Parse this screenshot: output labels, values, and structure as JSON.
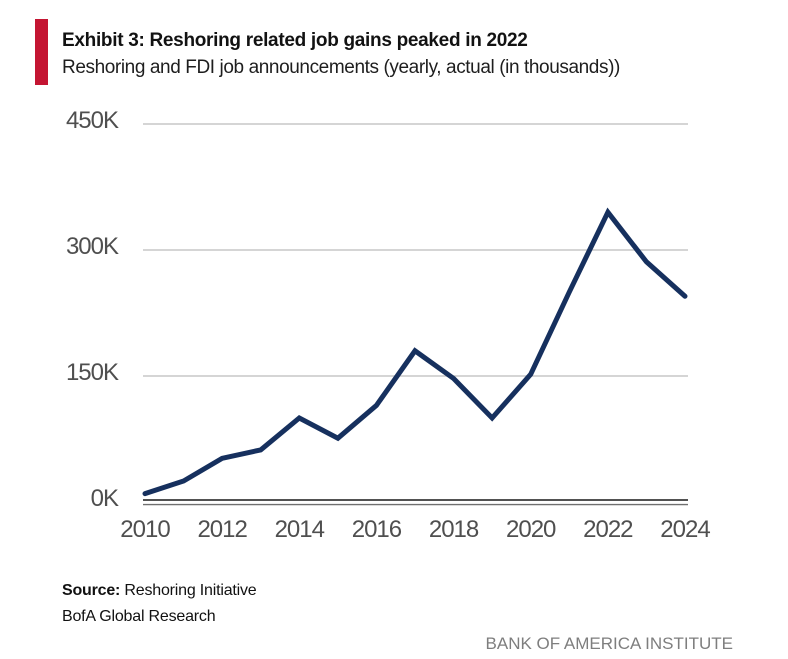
{
  "header": {
    "exhibit_title": "Exhibit 3: Reshoring related job gains peaked in 2022",
    "subtitle": "Reshoring and FDI job announcements (yearly, actual (in thousands))"
  },
  "chart_data": {
    "type": "line",
    "title": "Exhibit 3: Reshoring related job gains peaked in 2022",
    "subtitle": "Reshoring and FDI job announcements (yearly, actual (in thousands))",
    "x": [
      2010,
      2011,
      2012,
      2013,
      2014,
      2015,
      2016,
      2017,
      2018,
      2019,
      2020,
      2021,
      2022,
      2023,
      2024
    ],
    "values": [
      10,
      25,
      52,
      62,
      100,
      76,
      115,
      180,
      147,
      100,
      152,
      250,
      345,
      286,
      245
    ],
    "unit": "thousands of jobs",
    "series_name": "Reshoring and FDI job announcements",
    "xlim": [
      2010,
      2024
    ],
    "ylim": [
      0,
      450
    ],
    "yticks": [
      {
        "value": 0,
        "label": "0K"
      },
      {
        "value": 150,
        "label": "150K"
      },
      {
        "value": 300,
        "label": "300K"
      },
      {
        "value": 450,
        "label": "450K"
      }
    ],
    "xtick_labels": [
      "2010",
      "2012",
      "2014",
      "2016",
      "2018",
      "2020",
      "2022",
      "2024"
    ],
    "grid": true,
    "legend": "none"
  },
  "footer": {
    "source_label": "Source:",
    "source_value": " Reshoring Initiative",
    "source_line2": "BofA Global Research",
    "brand": "BANK OF AMERICA INSTITUTE"
  },
  "colors": {
    "accent_red": "#C41532",
    "line_navy": "#16305E",
    "grid_gray": "#C7C7C7",
    "axis_dark": "#3A3A3A",
    "axis_light": "#6F6F6F"
  }
}
